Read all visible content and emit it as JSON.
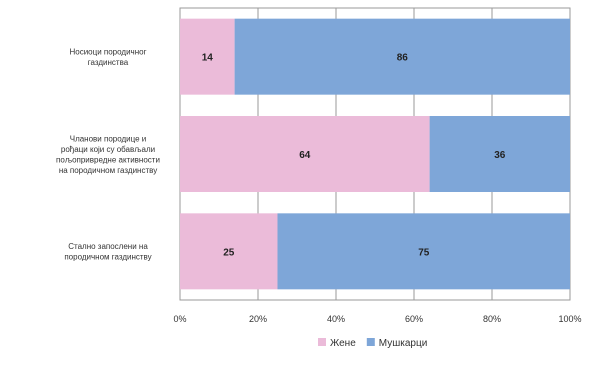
{
  "chart_data": {
    "type": "bar",
    "orientation": "horizontal",
    "stacked": "percent",
    "categories": [
      "Носиоци породичног газдинства",
      "Чланови породице и рођаци који су обављали пољопривредне активности на породичном газдинству",
      "Стално запослени на породичном газдинству"
    ],
    "category_lines": [
      [
        "Носиоци породичног",
        "газдинства"
      ],
      [
        "Чланови породице и",
        "рођаци који су обављали",
        "пољопривредне активности",
        "на породичном газдинству"
      ],
      [
        "Стално запослени на",
        "породичном газдинству"
      ]
    ],
    "series": [
      {
        "name": "Жене",
        "values": [
          14,
          64,
          25
        ],
        "color": "#ebbbd9"
      },
      {
        "name": "Мушкарци",
        "values": [
          86,
          36,
          75
        ],
        "color": "#7ea6d8"
      }
    ],
    "x_ticks": [
      "0%",
      "20%",
      "40%",
      "60%",
      "80%",
      "100%"
    ],
    "xlim": [
      0,
      100
    ],
    "grid": true,
    "legend_position": "bottom-right",
    "title": "",
    "xlabel": "",
    "ylabel": ""
  }
}
